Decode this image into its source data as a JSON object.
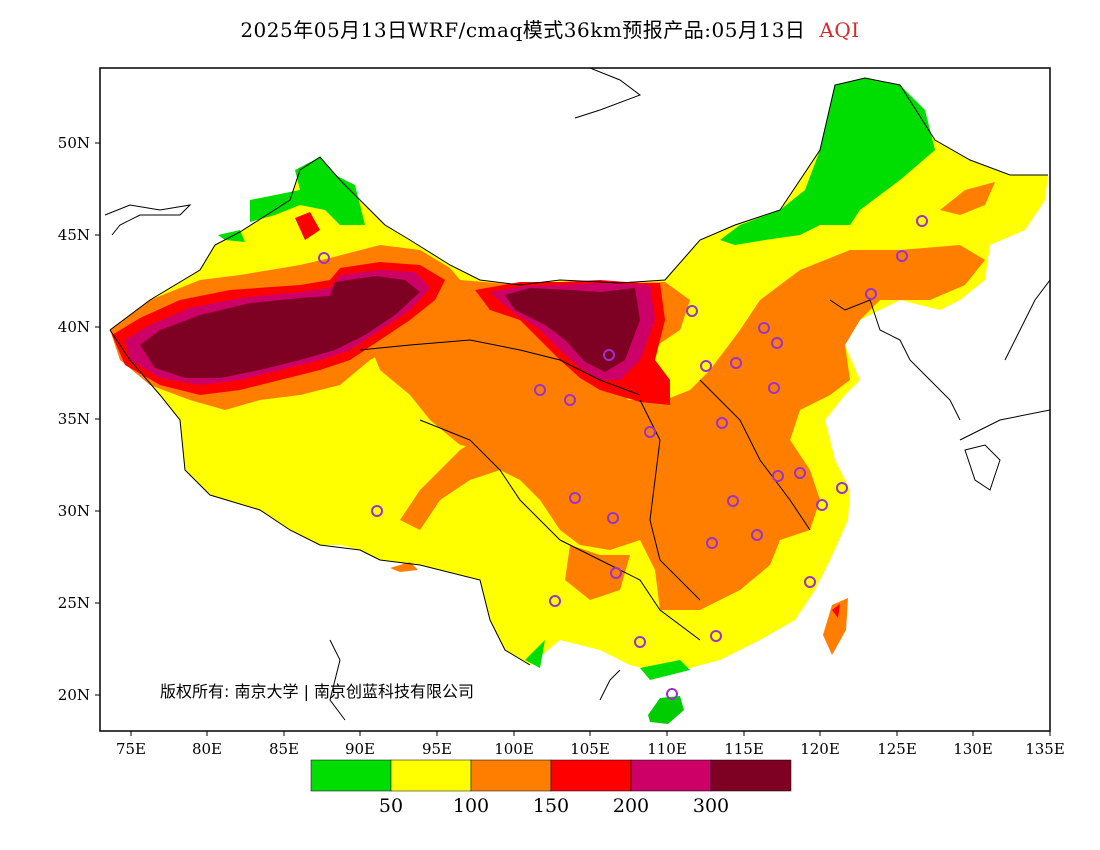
{
  "title": {
    "main": "2025年05月13日WRF/cmaq模式36km预报产品:05月13日",
    "variable": "AQI"
  },
  "map": {
    "lat_ticks": [
      "50N",
      "45N",
      "40N",
      "35N",
      "30N",
      "25N",
      "20N"
    ],
    "lon_ticks": [
      "75E",
      "80E",
      "85E",
      "90E",
      "95E",
      "100E",
      "105E",
      "110E",
      "115E",
      "120E",
      "125E",
      "130E",
      "135E"
    ],
    "copyright": "版权所有: 南京大学 | 南京创蓝科技有限公司"
  },
  "legend": {
    "colors": [
      "#00dd00",
      "#ffff00",
      "#ff7e00",
      "#ff0000",
      "#cc0066",
      "#7e0023"
    ],
    "labels": [
      "50",
      "100",
      "150",
      "200",
      "300"
    ]
  },
  "colors": {
    "good": "#00dd00",
    "moderate": "#ffff00",
    "sensitive": "#ff7e00",
    "unhealthy": "#ff0000",
    "very_unhealthy": "#cc0066",
    "hazardous": "#7e0023",
    "station_marker": "#9933cc"
  }
}
